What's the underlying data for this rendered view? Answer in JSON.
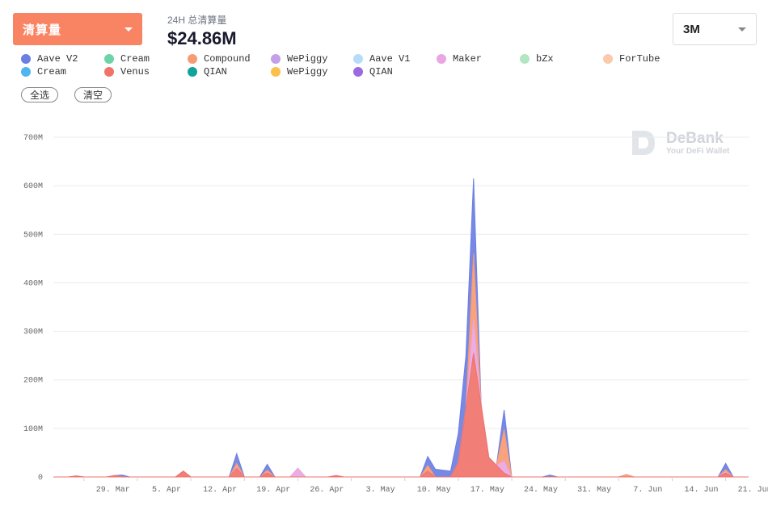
{
  "header": {
    "metric_label": "清算量",
    "stat_label": "24H 总清算量",
    "stat_value": "$24.86M",
    "range_label": "3M"
  },
  "legend": [
    {
      "label": "Aave V2",
      "color": "#6b7fe3"
    },
    {
      "label": "Cream",
      "color": "#6ed3a6"
    },
    {
      "label": "Compound",
      "color": "#f79b74"
    },
    {
      "label": "WePiggy",
      "color": "#c3a0e9"
    },
    {
      "label": "Aave V1",
      "color": "#b7dcf9"
    },
    {
      "label": "Maker",
      "color": "#eaa6e2"
    },
    {
      "label": "bZx",
      "color": "#b2e6c3"
    },
    {
      "label": "ForTube",
      "color": "#fbc9ab"
    },
    {
      "label": "Cream",
      "color": "#4db6ee"
    },
    {
      "label": "Venus",
      "color": "#f0736b"
    },
    {
      "label": "QIAN",
      "color": "#11a39a"
    },
    {
      "label": "WePiggy",
      "color": "#fbc04c"
    },
    {
      "label": "QIAN",
      "color": "#9b6ae0"
    }
  ],
  "buttons": {
    "select_all": "全选",
    "clear": "清空"
  },
  "watermark": {
    "brand": "DeBank",
    "tagline": "Your DeFi Wallet"
  },
  "chart_data": {
    "type": "area",
    "stacked": true,
    "x_start": "2021-03-25",
    "x_end": "2021-06-24",
    "x_tick_labels": [
      "29. Mar",
      "5. Apr",
      "12. Apr",
      "19. Apr",
      "26. Apr",
      "3. May",
      "10. May",
      "17. May",
      "24. May",
      "31. May",
      "7. Jun",
      "14. Jun",
      "21. Jun"
    ],
    "x_tick_dates": [
      "2021-03-29",
      "2021-04-05",
      "2021-04-12",
      "2021-04-19",
      "2021-04-26",
      "2021-05-03",
      "2021-05-10",
      "2021-05-17",
      "2021-05-24",
      "2021-05-31",
      "2021-06-07",
      "2021-06-14",
      "2021-06-21"
    ],
    "y_tick_labels": [
      "0",
      "100M",
      "200M",
      "300M",
      "400M",
      "500M",
      "600M",
      "700M"
    ],
    "ylim": [
      0,
      700
    ],
    "y_unit": "M",
    "grid": true,
    "series": [
      {
        "name": "Venus",
        "color": "#f0736b",
        "points": [
          [
            "2021-03-28",
            2
          ],
          [
            "2021-04-02",
            3
          ],
          [
            "2021-04-11",
            12
          ],
          [
            "2021-04-18",
            18
          ],
          [
            "2021-04-22",
            8
          ],
          [
            "2021-05-01",
            3
          ],
          [
            "2021-05-13",
            12
          ],
          [
            "2021-05-17",
            30
          ],
          [
            "2021-05-19",
            255
          ],
          [
            "2021-05-21",
            40
          ],
          [
            "2021-05-23",
            8
          ],
          [
            "2021-06-21",
            8
          ]
        ]
      },
      {
        "name": "Maker",
        "color": "#eaa6e2",
        "points": [
          [
            "2021-04-18",
            2
          ],
          [
            "2021-04-26",
            18
          ],
          [
            "2021-05-19",
            70
          ],
          [
            "2021-05-23",
            25
          ],
          [
            "2021-06-21",
            2
          ]
        ]
      },
      {
        "name": "Compound",
        "color": "#f79b74",
        "points": [
          [
            "2021-04-18",
            8
          ],
          [
            "2021-04-22",
            6
          ],
          [
            "2021-05-13",
            12
          ],
          [
            "2021-05-19",
            135
          ],
          [
            "2021-05-23",
            65
          ],
          [
            "2021-06-08",
            5
          ],
          [
            "2021-06-21",
            5
          ]
        ]
      },
      {
        "name": "Aave V2",
        "color": "#6b7fe3",
        "points": [
          [
            "2021-04-03",
            4
          ],
          [
            "2021-04-18",
            20
          ],
          [
            "2021-04-22",
            12
          ],
          [
            "2021-05-13",
            18
          ],
          [
            "2021-05-16",
            12
          ],
          [
            "2021-05-19",
            155
          ],
          [
            "2021-05-23",
            40
          ],
          [
            "2021-05-29",
            4
          ],
          [
            "2021-06-21",
            13
          ]
        ]
      }
    ]
  }
}
